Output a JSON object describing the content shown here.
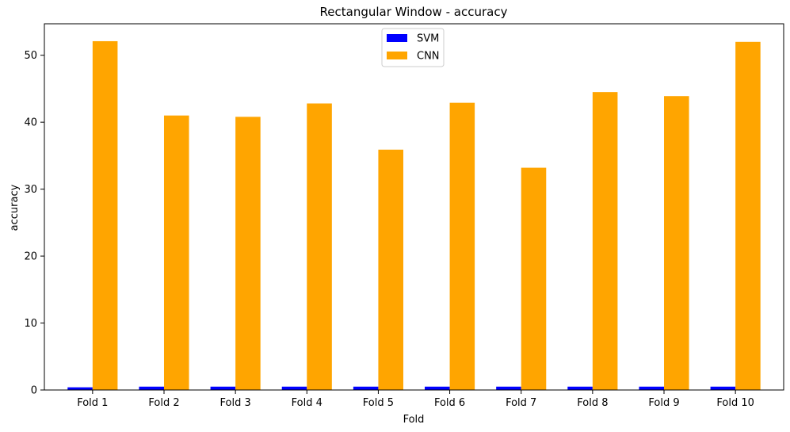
{
  "chart_data": {
    "type": "bar",
    "title": "Rectangular Window - accuracy",
    "xlabel": "Fold",
    "ylabel": "accuracy",
    "categories": [
      "Fold 1",
      "Fold 2",
      "Fold 3",
      "Fold 4",
      "Fold 5",
      "Fold 6",
      "Fold 7",
      "Fold 8",
      "Fold 9",
      "Fold 10"
    ],
    "series": [
      {
        "name": "SVM",
        "color": "#0000ff",
        "values": [
          0.4,
          0.5,
          0.5,
          0.5,
          0.5,
          0.5,
          0.5,
          0.5,
          0.5,
          0.5
        ]
      },
      {
        "name": "CNN",
        "color": "#ffa500",
        "values": [
          52.1,
          41.0,
          40.8,
          42.8,
          35.9,
          42.9,
          33.2,
          44.5,
          43.9,
          52.0
        ]
      }
    ],
    "ylim": [
      0,
      54.7
    ],
    "yticks": [
      0,
      10,
      20,
      30,
      40,
      50
    ],
    "grid": false,
    "legend_position": "top-center"
  }
}
